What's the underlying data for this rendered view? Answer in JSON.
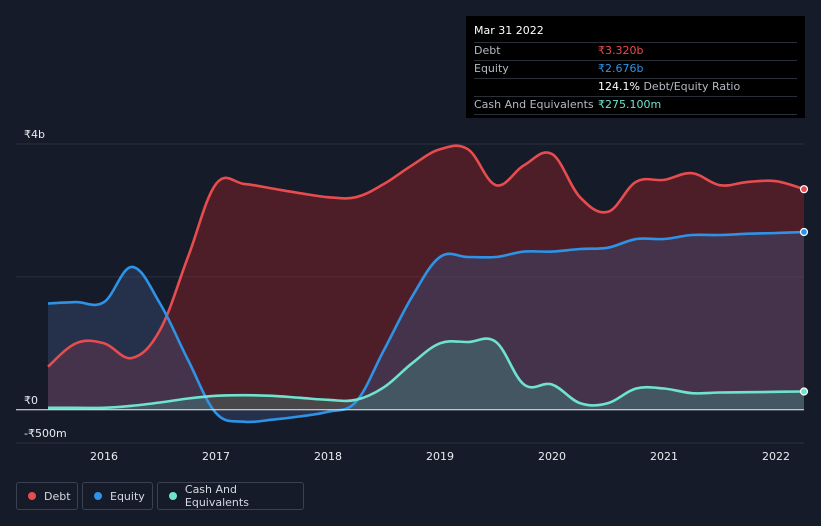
{
  "colors": {
    "debt": "#e74c4f",
    "equity": "#2e93e6",
    "cash": "#6fe3cf",
    "background": "#151b28"
  },
  "tooltip": {
    "date": "Mar 31 2022",
    "debt_label": "Debt",
    "debt_value": "₹3.320b",
    "equity_label": "Equity",
    "equity_value": "₹2.676b",
    "ratio_value": "124.1%",
    "ratio_label": "Debt/Equity Ratio",
    "cash_label": "Cash And Equivalents",
    "cash_value": "₹275.100m"
  },
  "legend": {
    "debt": "Debt",
    "equity": "Equity",
    "cash": "Cash And Equivalents"
  },
  "chart_data": {
    "type": "area",
    "title": "",
    "xlabel": "",
    "ylabel": "",
    "xlim": [
      2015.5,
      2022.25
    ],
    "ylim": [
      -500,
      4000
    ],
    "y_tick_labels": [
      {
        "value": 4000,
        "label": "₹4b"
      },
      {
        "value": 0,
        "label": "₹0"
      },
      {
        "value": -500,
        "label": "-₹500m"
      }
    ],
    "x_ticks": [
      2016,
      2017,
      2018,
      2019,
      2020,
      2021,
      2022
    ],
    "series": [
      {
        "name": "Debt",
        "key": "debt",
        "x": [
          2015.5,
          2015.75,
          2016.0,
          2016.25,
          2016.5,
          2016.75,
          2017.0,
          2017.25,
          2017.5,
          2017.75,
          2018.0,
          2018.25,
          2018.5,
          2018.75,
          2019.0,
          2019.25,
          2019.5,
          2019.75,
          2020.0,
          2020.25,
          2020.5,
          2020.75,
          2021.0,
          2021.25,
          2021.5,
          2021.75,
          2022.0,
          2022.25
        ],
        "values": [
          650,
          1000,
          1000,
          780,
          1200,
          2300,
          3400,
          3400,
          3330,
          3260,
          3200,
          3200,
          3400,
          3680,
          3920,
          3920,
          3380,
          3680,
          3850,
          3200,
          2980,
          3430,
          3460,
          3560,
          3380,
          3430,
          3440,
          3320
        ]
      },
      {
        "name": "Equity",
        "key": "equity",
        "x": [
          2015.5,
          2015.75,
          2016.0,
          2016.25,
          2016.5,
          2016.75,
          2017.0,
          2017.25,
          2017.5,
          2017.75,
          2018.0,
          2018.25,
          2018.5,
          2018.75,
          2019.0,
          2019.25,
          2019.5,
          2019.75,
          2020.0,
          2020.25,
          2020.5,
          2020.75,
          2021.0,
          2021.25,
          2021.5,
          2021.75,
          2022.0,
          2022.25
        ],
        "values": [
          1600,
          1620,
          1620,
          2150,
          1600,
          750,
          -50,
          -180,
          -150,
          -100,
          -30,
          120,
          900,
          1700,
          2300,
          2300,
          2300,
          2380,
          2380,
          2420,
          2440,
          2570,
          2570,
          2630,
          2630,
          2650,
          2660,
          2676
        ]
      },
      {
        "name": "Cash And Equivalents",
        "key": "cash",
        "x": [
          2015.5,
          2015.75,
          2016.0,
          2016.25,
          2016.5,
          2016.75,
          2017.0,
          2017.25,
          2017.5,
          2017.75,
          2018.0,
          2018.25,
          2018.5,
          2018.75,
          2019.0,
          2019.25,
          2019.5,
          2019.75,
          2020.0,
          2020.25,
          2020.5,
          2020.75,
          2021.0,
          2021.25,
          2021.5,
          2021.75,
          2022.0,
          2022.25
        ],
        "values": [
          30,
          30,
          30,
          60,
          110,
          170,
          210,
          220,
          210,
          180,
          150,
          150,
          340,
          700,
          1000,
          1020,
          1020,
          380,
          380,
          100,
          100,
          320,
          320,
          250,
          260,
          265,
          270,
          275
        ]
      }
    ]
  }
}
